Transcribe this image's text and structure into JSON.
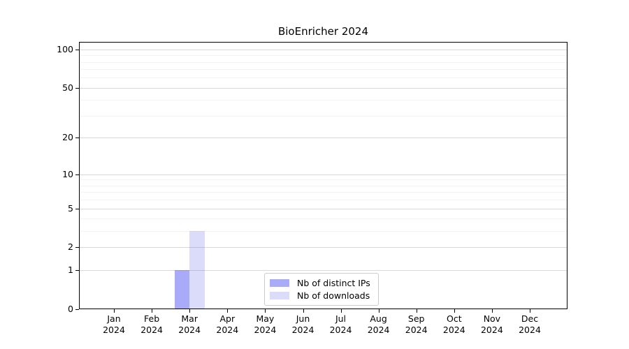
{
  "title": "BioEnricher 2024",
  "legend": {
    "items": [
      {
        "label": "Nb of distinct IPs",
        "color": "#a9aaf8"
      },
      {
        "label": "Nb of downloads",
        "color": "#dbdbfa"
      }
    ]
  },
  "chart_data": {
    "type": "bar",
    "title": "BioEnricher 2024",
    "categories": [
      {
        "month": "Jan",
        "year": "2024"
      },
      {
        "month": "Feb",
        "year": "2024"
      },
      {
        "month": "Mar",
        "year": "2024"
      },
      {
        "month": "Apr",
        "year": "2024"
      },
      {
        "month": "May",
        "year": "2024"
      },
      {
        "month": "Jun",
        "year": "2024"
      },
      {
        "month": "Jul",
        "year": "2024"
      },
      {
        "month": "Aug",
        "year": "2024"
      },
      {
        "month": "Sep",
        "year": "2024"
      },
      {
        "month": "Oct",
        "year": "2024"
      },
      {
        "month": "Nov",
        "year": "2024"
      },
      {
        "month": "Dec",
        "year": "2024"
      }
    ],
    "series": [
      {
        "name": "Nb of distinct IPs",
        "color": "#a9aaf8",
        "values": [
          0,
          0,
          1,
          0,
          0,
          0,
          0,
          0,
          0,
          0,
          0,
          0
        ]
      },
      {
        "name": "Nb of downloads",
        "color": "#dbdbfa",
        "values": [
          0,
          0,
          3,
          0,
          0,
          0,
          0,
          0,
          0,
          0,
          0,
          0
        ]
      }
    ],
    "xlabel": "",
    "ylabel": "",
    "y_axis": {
      "scale": "log1p",
      "major_ticks": [
        0,
        1,
        2,
        5,
        10,
        20,
        50,
        100
      ],
      "minor_ticks": [
        3,
        4,
        6,
        7,
        8,
        9,
        30,
        40,
        60,
        70,
        80,
        90
      ],
      "ylim": [
        0,
        110
      ]
    },
    "grid": "horizontal-major-and-minor",
    "legend_position": "bottom-center"
  }
}
